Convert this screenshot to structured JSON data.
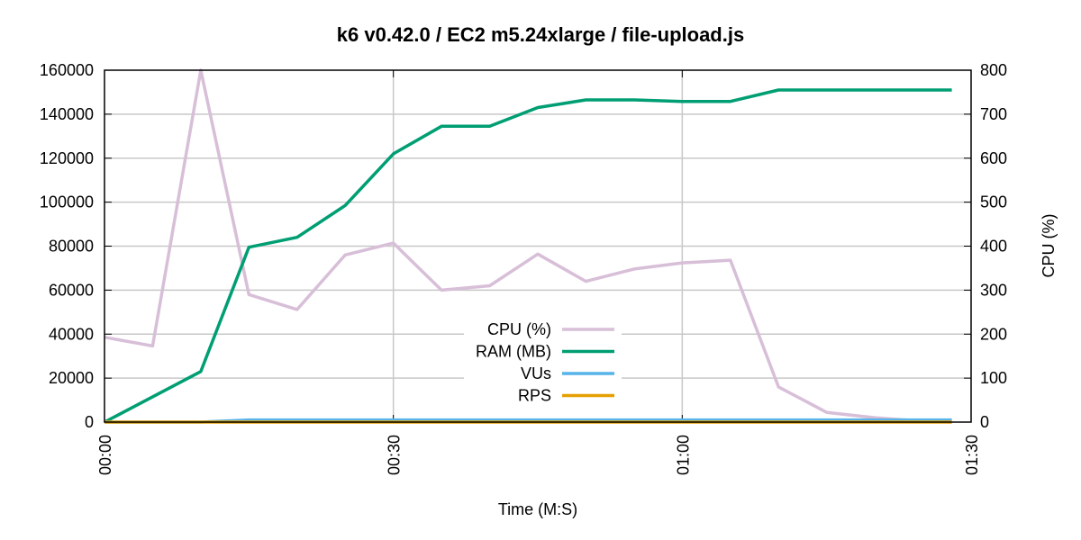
{
  "chart_data": {
    "type": "line",
    "title": "k6 v0.42.0 / EC2 m5.24xlarge / file-upload.js",
    "xlabel": "Time (M:S)",
    "ylabel": "",
    "y2label": "CPU (%)",
    "xlim": [
      0,
      90
    ],
    "ylim": [
      0,
      160000
    ],
    "y2lim": [
      0,
      800
    ],
    "x_ticks": [
      {
        "value": 0,
        "label": "00:00"
      },
      {
        "value": 30,
        "label": "00:30"
      },
      {
        "value": 60,
        "label": "01:00"
      },
      {
        "value": 90,
        "label": "01:30"
      }
    ],
    "y_ticks": [
      0,
      20000,
      40000,
      60000,
      80000,
      100000,
      120000,
      140000,
      160000
    ],
    "y2_ticks": [
      0,
      100,
      200,
      300,
      400,
      500,
      600,
      700,
      800
    ],
    "grid": true,
    "legend_position": "center-bottom",
    "series": [
      {
        "name": "CPU (%)",
        "axis": "y2",
        "color": "#d8bfd8",
        "x": [
          0,
          5,
          10,
          15,
          20,
          25,
          30,
          35,
          40,
          45,
          50,
          55,
          60,
          65,
          70,
          75,
          80,
          85,
          88
        ],
        "values": [
          193,
          173,
          800,
          290,
          256,
          380,
          407,
          300,
          310,
          382,
          320,
          348,
          362,
          368,
          80,
          22,
          10,
          2,
          0
        ]
      },
      {
        "name": "RAM (MB)",
        "axis": "y",
        "color": "#009e73",
        "x": [
          0,
          5,
          10,
          15,
          20,
          25,
          30,
          35,
          40,
          45,
          50,
          55,
          60,
          65,
          70,
          75,
          80,
          85,
          88
        ],
        "values": [
          0,
          11500,
          23000,
          79500,
          84000,
          98500,
          122000,
          134500,
          134500,
          143000,
          146500,
          146500,
          145800,
          145800,
          151000,
          151000,
          151000,
          151000,
          151000
        ]
      },
      {
        "name": "VUs",
        "axis": "y",
        "color": "#56b4e9",
        "x": [
          0,
          10,
          15,
          88
        ],
        "values": [
          0,
          0,
          1000,
          1000
        ]
      },
      {
        "name": "RPS",
        "axis": "y",
        "color": "#e69f00",
        "x": [
          0,
          88
        ],
        "values": [
          0,
          0
        ]
      }
    ]
  }
}
